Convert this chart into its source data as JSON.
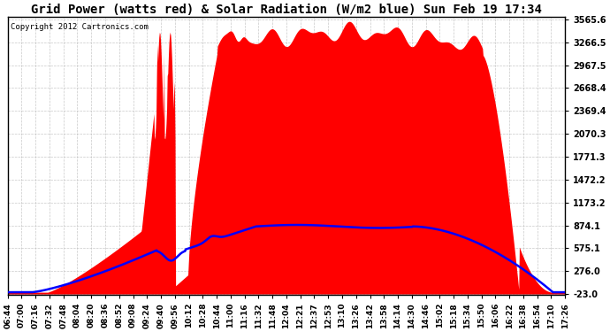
{
  "title": "Grid Power (watts red) & Solar Radiation (W/m2 blue) Sun Feb 19 17:34",
  "copyright": "Copyright 2012 Cartronics.com",
  "background_color": "#ffffff",
  "plot_bg_color": "#ffffff",
  "y_ticks": [
    -23.0,
    276.0,
    575.1,
    874.1,
    1173.2,
    1472.2,
    1771.3,
    2070.3,
    2369.4,
    2668.4,
    2967.5,
    3266.5,
    3565.6
  ],
  "y_min": -23.0,
  "y_max": 3565.6,
  "grid_color": "#bbbbbb",
  "red_color": "#ff0000",
  "blue_color": "#0000ff",
  "x_tick_labels": [
    "06:44",
    "07:00",
    "07:16",
    "07:32",
    "07:48",
    "08:04",
    "08:20",
    "08:36",
    "08:52",
    "09:08",
    "09:24",
    "09:40",
    "09:56",
    "10:12",
    "10:28",
    "10:44",
    "11:00",
    "11:16",
    "11:32",
    "11:48",
    "12:04",
    "12:21",
    "12:37",
    "12:53",
    "13:10",
    "13:26",
    "13:42",
    "13:58",
    "14:14",
    "14:30",
    "14:46",
    "15:02",
    "15:18",
    "15:34",
    "15:50",
    "16:06",
    "16:22",
    "16:38",
    "16:54",
    "17:10",
    "17:26"
  ],
  "title_fontsize": 10,
  "copyright_fontsize": 6.5,
  "tick_fontsize": 7
}
